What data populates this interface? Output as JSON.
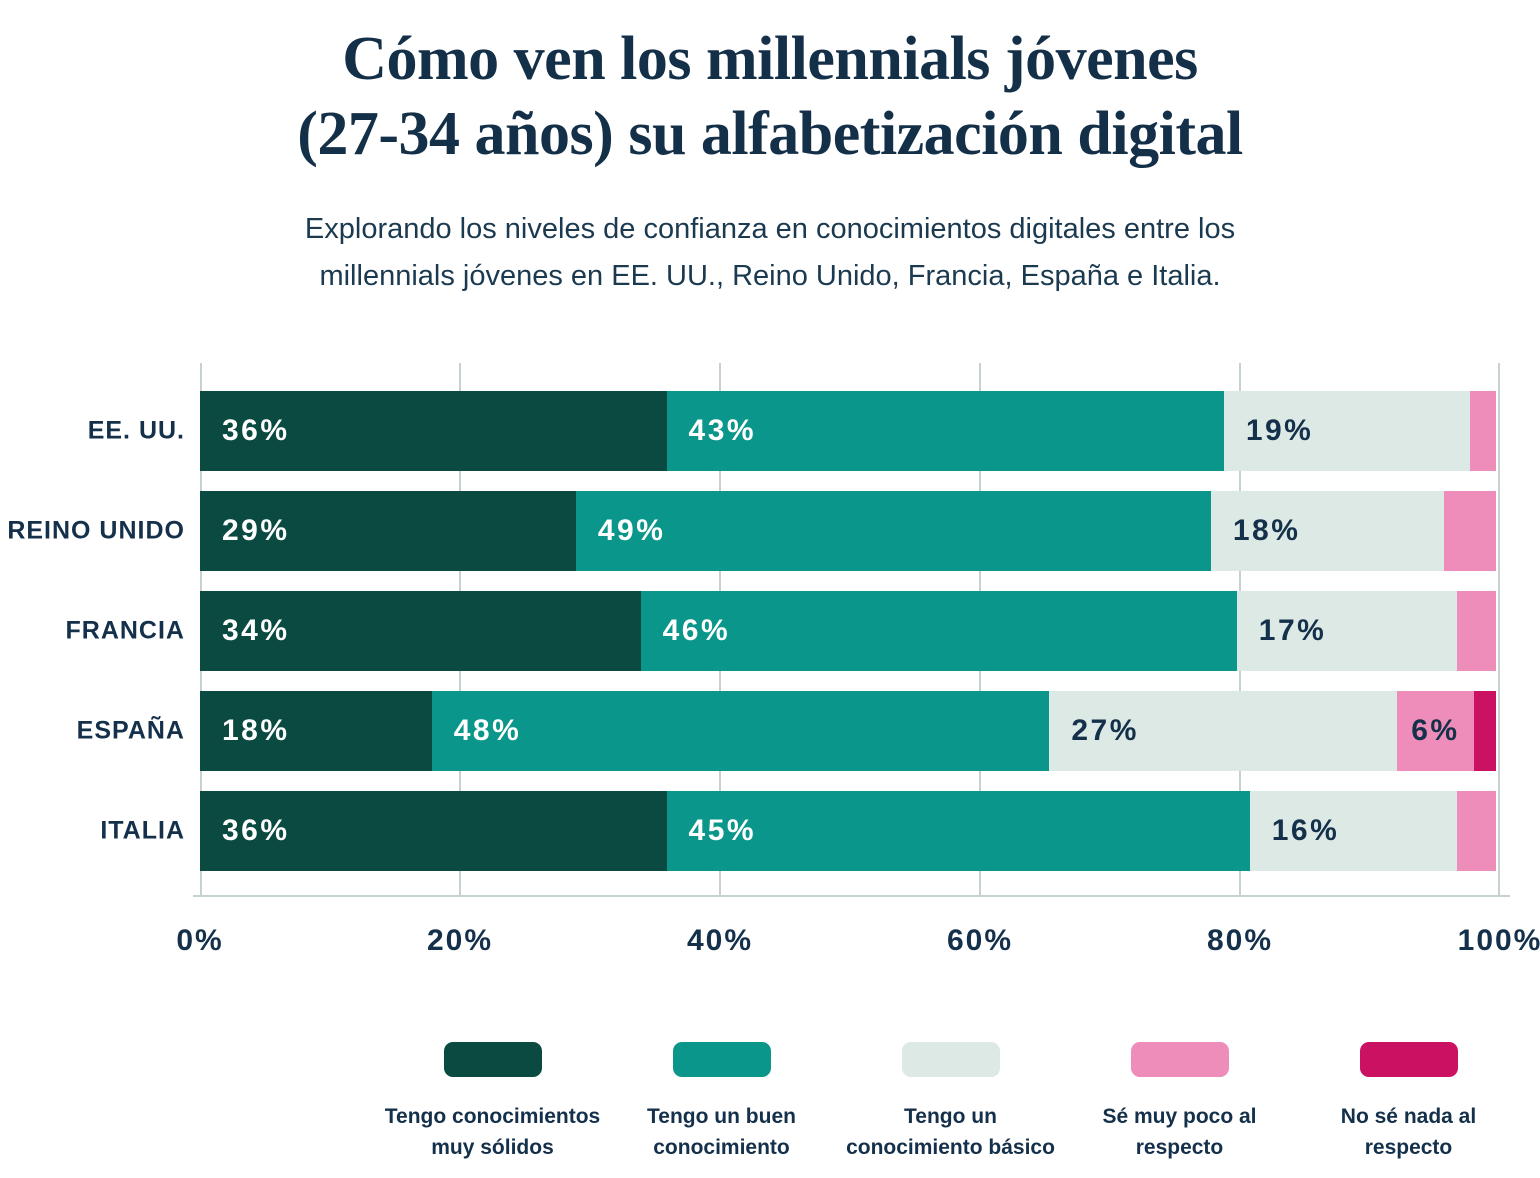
{
  "title": {
    "line1": "Cómo ven los millennials jóvenes",
    "line2": "(27-34 años) su alfabetización digital"
  },
  "subtitle": {
    "line1": "Explorando los niveles de confianza en conocimientos digitales entre los",
    "line2": "millennials jóvenes en EE. UU., Reino Unido, Francia, España e Italia."
  },
  "colors": {
    "background": "#ffffff",
    "heading_text": "#143049",
    "body_text": "#1b3a50",
    "label_navy": "#14304a",
    "gridline": "#c7d2cf",
    "very_solid": "#0a4a40",
    "good": "#0a968a",
    "basic": "#dce9e5",
    "very_little": "#ee8db9",
    "nothing": "#ca1162"
  },
  "chart_data": {
    "type": "bar",
    "orientation": "horizontal",
    "stacked": true,
    "grid": true,
    "legend_position": "bottom",
    "xlim": [
      0,
      100
    ],
    "x_ticks": [
      "0%",
      "20%",
      "40%",
      "60%",
      "80%",
      "100%"
    ],
    "unit": "%",
    "min_label_value": 6,
    "categories": [
      "EE. UU.",
      "REINO UNIDO",
      "FRANCIA",
      "ESPAÑA",
      "ITALIA"
    ],
    "series": [
      {
        "name": "Tengo conocimientos muy sólidos",
        "legend_lines": [
          "Tengo conocimientos",
          "muy sólidos"
        ],
        "color": "#0a4a40",
        "label_color": "#ffffff",
        "label_align": "left",
        "values": [
          36,
          29,
          34,
          18,
          36
        ]
      },
      {
        "name": "Tengo un buen conocimiento",
        "legend_lines": [
          "Tengo un buen",
          "conocimiento"
        ],
        "color": "#0a968a",
        "label_color": "#ffffff",
        "label_align": "left",
        "values": [
          43,
          49,
          46,
          48,
          45
        ]
      },
      {
        "name": "Tengo un conocimiento básico",
        "legend_lines": [
          "Tengo un",
          "conocimiento básico"
        ],
        "color": "#dce9e5",
        "label_color": "#14304a",
        "label_align": "left",
        "values": [
          19,
          18,
          17,
          27,
          16
        ]
      },
      {
        "name": "Sé muy poco al respecto",
        "legend_lines": [
          "Sé muy poco al",
          "respecto"
        ],
        "color": "#ee8db9",
        "label_color": "#14304a",
        "label_align": "center",
        "values": [
          2,
          4,
          3,
          6,
          3
        ]
      },
      {
        "name": "No sé nada al respecto",
        "legend_lines": [
          "No sé nada al",
          "respecto"
        ],
        "color": "#ca1162",
        "label_color": "#ffffff",
        "label_align": "left",
        "values": [
          0,
          0,
          0,
          1,
          0
        ]
      }
    ]
  }
}
